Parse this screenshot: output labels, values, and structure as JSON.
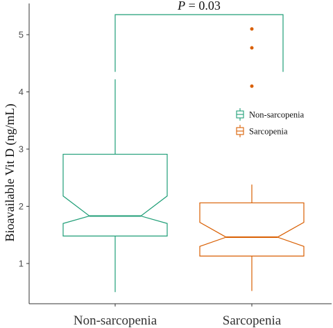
{
  "chart_data": {
    "type": "box",
    "ylabel": "Bioavailable Vit D (ng/mL)",
    "xlabel": "",
    "ylim": [
      0.3,
      5.35
    ],
    "yticks": [
      "1",
      "2",
      "3",
      "4",
      "5"
    ],
    "notched": true,
    "categories": [
      "Non-sarcopenia",
      "Sarcopenia"
    ],
    "groups": [
      {
        "label": "Non-sarcopenia",
        "color": "#1f9e77",
        "whisker_low": 0.5,
        "q1": 1.48,
        "notch_low": 1.7,
        "median": 1.83,
        "notch_high": 2.18,
        "q3": 2.91,
        "whisker_high": 4.22,
        "outliers": []
      },
      {
        "label": "Sarcopenia",
        "color": "#d95f02",
        "whisker_low": 0.52,
        "q1": 1.13,
        "notch_low": 1.3,
        "median": 1.46,
        "notch_high": 1.72,
        "q3": 2.06,
        "whisker_high": 2.38,
        "outliers": [
          4.1,
          4.77,
          5.1
        ]
      }
    ],
    "legend": {
      "position": "right-inside",
      "entries": [
        "Non-sarcopenia",
        "Sarcopenia"
      ]
    },
    "annotation": {
      "p_label": "P",
      "p_rest": " = 0.03",
      "bracket_top": 5.35,
      "bracket_left_end": 4.35,
      "bracket_right_end": 4.35,
      "color": "#1f9e77"
    }
  }
}
